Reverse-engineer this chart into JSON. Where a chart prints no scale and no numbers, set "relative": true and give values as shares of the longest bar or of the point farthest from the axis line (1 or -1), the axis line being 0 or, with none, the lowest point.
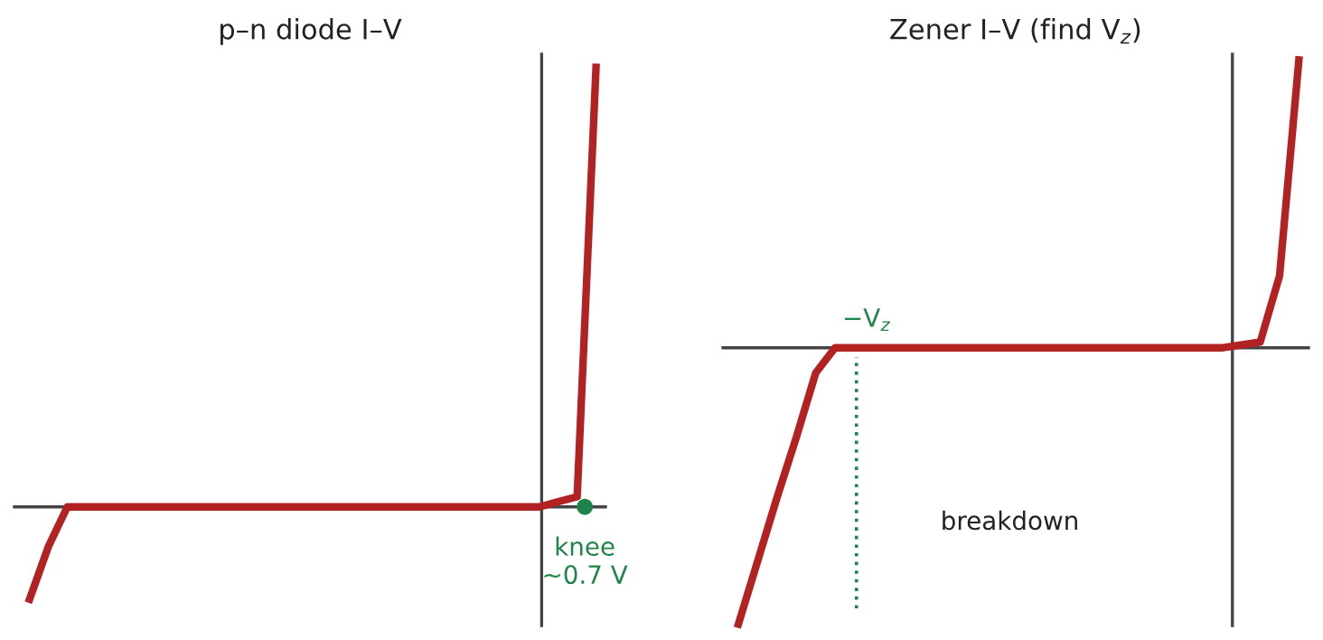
{
  "chart_data": [
    {
      "type": "line",
      "title": "p–n diode I–V",
      "relative": true,
      "categories": [
        null,
        null,
        null,
        null,
        null,
        null,
        null,
        null,
        null,
        null,
        null,
        null,
        null,
        null,
        null,
        null,
        null,
        null,
        null,
        null,
        null,
        null,
        null,
        null,
        null,
        null,
        null,
        null,
        null,
        null,
        null
      ],
      "series": [
        {
          "color": "#b22222",
          "values": [
            -0.21,
            -0.09,
            0,
            0,
            0,
            0,
            0,
            0,
            0,
            0,
            0,
            0,
            0,
            0,
            0,
            0,
            0,
            0,
            0,
            0,
            0,
            0,
            0,
            0,
            0,
            0,
            0,
            0,
            0.012,
            0.023,
            1
          ]
        }
      ],
      "annotations": [
        "knee\n~0.7 V"
      ]
    },
    {
      "type": "line",
      "title": "Zener I–V (find V$_{z}$)",
      "relative": true,
      "categories": [
        null,
        null,
        null,
        null,
        null,
        null,
        null,
        null,
        null,
        null,
        null,
        null,
        null,
        null,
        null,
        null,
        null,
        null,
        null,
        null,
        null,
        null,
        null,
        null,
        null,
        null,
        null,
        null,
        null,
        null
      ],
      "series": [
        {
          "color": "#b22222",
          "values": [
            -0.96,
            -0.74,
            -0.52,
            -0.31,
            -0.087,
            0,
            0,
            0,
            0,
            0,
            0,
            0,
            0,
            0,
            0,
            0,
            0,
            0,
            0,
            0,
            0,
            0,
            0,
            0,
            0,
            0,
            0.01,
            0.02,
            0.25,
            1
          ]
        }
      ],
      "annotations": [
        "−V$_{z}$",
        "breakdown"
      ]
    }
  ]
}
